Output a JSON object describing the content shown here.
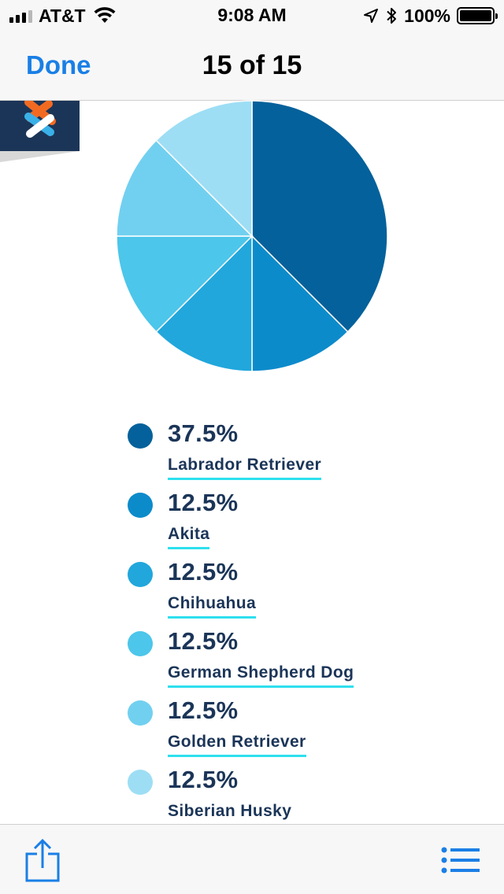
{
  "status_bar": {
    "carrier": "AT&T",
    "time": "9:08 AM",
    "battery": "100%",
    "icons": [
      "signal-icon",
      "wifi-icon",
      "location-arrow-icon",
      "bluetooth-icon",
      "battery-icon"
    ]
  },
  "nav": {
    "done_label": "Done",
    "title": "15 of 15"
  },
  "colors": {
    "accent": "#1a7fe6",
    "text_dark": "#1b3558",
    "underline": "#2ee0ee",
    "logo_bg": "#1b3558",
    "logo_orange": "#f26a21",
    "logo_blue": "#3ab0e8"
  },
  "legend": [
    {
      "percent": "37.5%",
      "name": "Labrador Retriever",
      "color": "#04619b"
    },
    {
      "percent": "12.5%",
      "name": "Akita",
      "color": "#0c8bcb"
    },
    {
      "percent": "12.5%",
      "name": "Chihuahua",
      "color": "#21a7dc"
    },
    {
      "percent": "12.5%",
      "name": "German Shepherd Dog",
      "color": "#4cc6ea"
    },
    {
      "percent": "12.5%",
      "name": "Golden Retriever",
      "color": "#71d0f0"
    },
    {
      "percent": "12.5%",
      "name": "Siberian Husky",
      "color": "#9ddef5"
    }
  ],
  "chart_data": {
    "type": "pie",
    "categories": [
      "Labrador Retriever",
      "Akita",
      "Chihuahua",
      "German Shepherd Dog",
      "Golden Retriever",
      "Siberian Husky"
    ],
    "values": [
      37.5,
      12.5,
      12.5,
      12.5,
      12.5,
      12.5
    ],
    "colors": [
      "#04619b",
      "#0c8bcb",
      "#21a7dc",
      "#4cc6ea",
      "#71d0f0",
      "#9ddef5"
    ],
    "start": "12 o'clock",
    "direction": "clockwise"
  },
  "toolbar": {
    "share_icon": "share-icon",
    "list_icon": "list-icon"
  }
}
